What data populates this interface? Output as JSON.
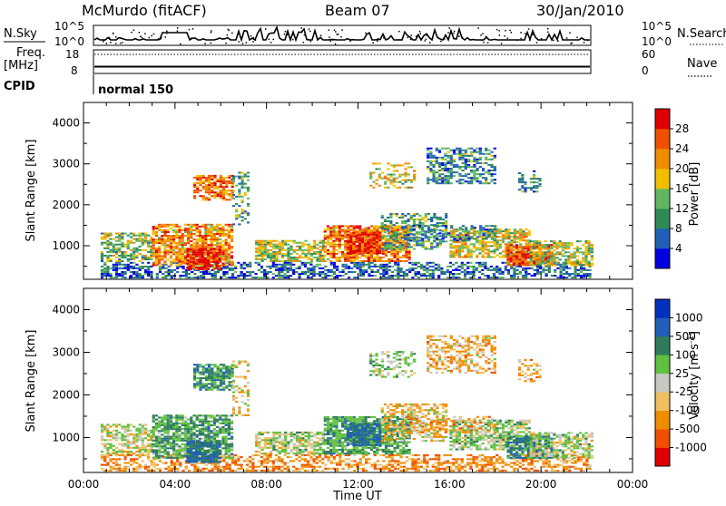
{
  "header": {
    "station": "McMurdo (fitACF)",
    "beam": "Beam 07",
    "date": "30/Jan/2010"
  },
  "top_panel": {
    "nsky_label": "N.Sky",
    "nsky_ticks": [
      "10^5",
      "10^0"
    ],
    "nsearch_label": "N.Search",
    "nsearch_ticks": [
      "10^5",
      "10^0"
    ],
    "freq_label_line1": "Freq.",
    "freq_label_line2": "[MHz]",
    "freq_ticks": [
      "18",
      "8"
    ],
    "nave_label": "Nave",
    "nave_ticks": [
      "60",
      "0"
    ],
    "cpid_label": "CPID",
    "cpid_value": "normal 150"
  },
  "chart_data": [
    {
      "type": "heatmap",
      "name": "power",
      "ylabel": "Slant Range [km]",
      "ylim": [
        180,
        4500
      ],
      "yticks": [
        "4000",
        "3000",
        "2000",
        "1000"
      ],
      "xticks": [
        "00:00",
        "04:00",
        "08:00",
        "12:00",
        "16:00",
        "20:00",
        "00:00"
      ],
      "xlim_hours": [
        0,
        24
      ],
      "data_coverage_hours": [
        0.75,
        22.2
      ],
      "colorbar": {
        "label": "Power [dB]",
        "ticks": [
          "28",
          "24",
          "20",
          "16",
          "12",
          "8",
          "4"
        ],
        "colors": [
          "#0000e0",
          "#1f5fb8",
          "#2e8b57",
          "#5fb85f",
          "#f0c000",
          "#f08c00",
          "#f05000",
          "#e00000"
        ]
      }
    },
    {
      "type": "heatmap",
      "name": "velocity",
      "ylabel": "Slant Range [km]",
      "ylim": [
        180,
        4500
      ],
      "yticks": [
        "4000",
        "3000",
        "2000",
        "1000"
      ],
      "xticks": [
        "00:00",
        "04:00",
        "08:00",
        "12:00",
        "16:00",
        "20:00",
        "00:00"
      ],
      "xlabel": "Time UT",
      "xlim_hours": [
        0,
        24
      ],
      "data_coverage_hours": [
        0.75,
        22.2
      ],
      "colorbar": {
        "label": "Velocity [m s",
        "label_sup": "-1",
        "label_end": "]",
        "ticks": [
          "1000",
          "500",
          "100",
          "25",
          "-25",
          "-100",
          "-500",
          "-1000"
        ],
        "colors": [
          "#e00000",
          "#f05000",
          "#f08c00",
          "#f0c060",
          "#c8c8c0",
          "#60c040",
          "#2e7d5a",
          "#1f5fb8",
          "#0030c0"
        ]
      }
    }
  ]
}
